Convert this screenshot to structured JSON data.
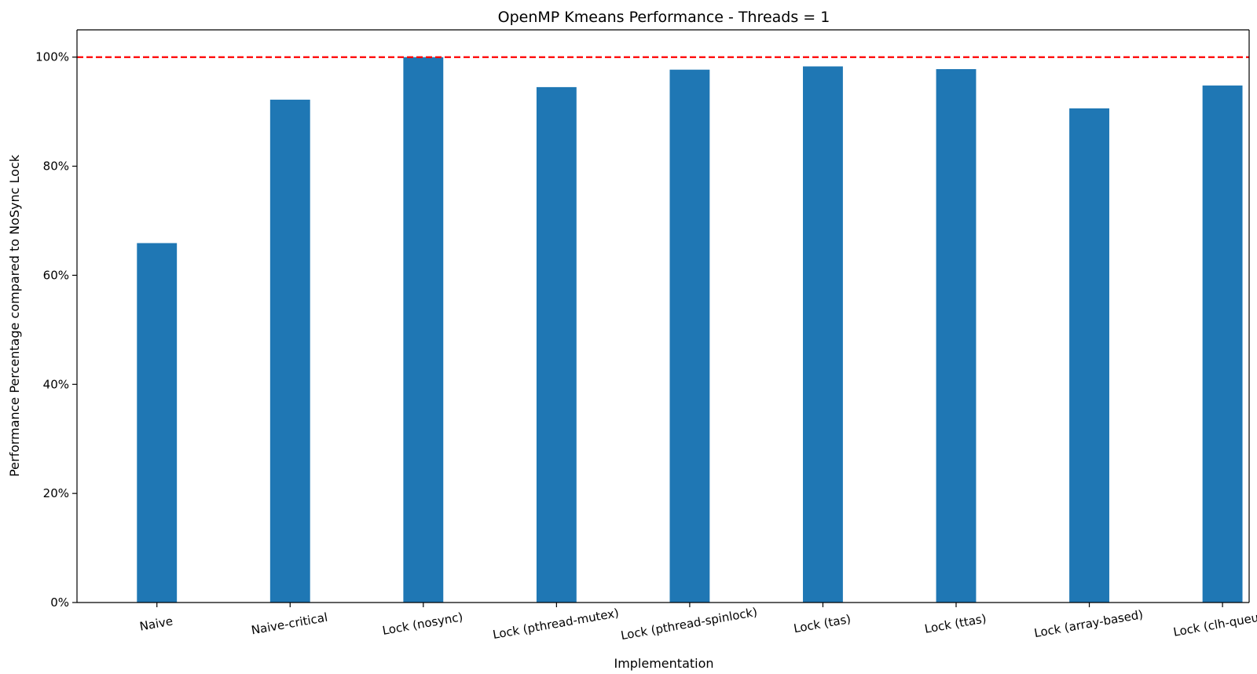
{
  "chart_data": {
    "type": "bar",
    "title": "OpenMP Kmeans Performance - Threads = 1",
    "xlabel": "Implementation",
    "ylabel": "Performance Percentage compared to NoSync Lock",
    "categories": [
      "Naive",
      "Naive-critical",
      "Lock (nosync)",
      "Lock (pthread-mutex)",
      "Lock (pthread-spinlock)",
      "Lock (tas)",
      "Lock (ttas)",
      "Lock (array-based)",
      "Lock (clh-queue)"
    ],
    "values": [
      65.9,
      92.2,
      100.0,
      94.5,
      97.7,
      98.3,
      97.8,
      90.6,
      94.8
    ],
    "ylim": [
      0,
      105
    ],
    "yticks": [
      0,
      20,
      40,
      60,
      80,
      100
    ],
    "ytick_labels": [
      "0%",
      "20%",
      "40%",
      "60%",
      "80%",
      "100%"
    ],
    "reference_line": {
      "value": 100,
      "style": "dashed",
      "color": "#ff0000"
    },
    "bar_color": "#1f77b4",
    "grid": false,
    "legend": "none"
  }
}
